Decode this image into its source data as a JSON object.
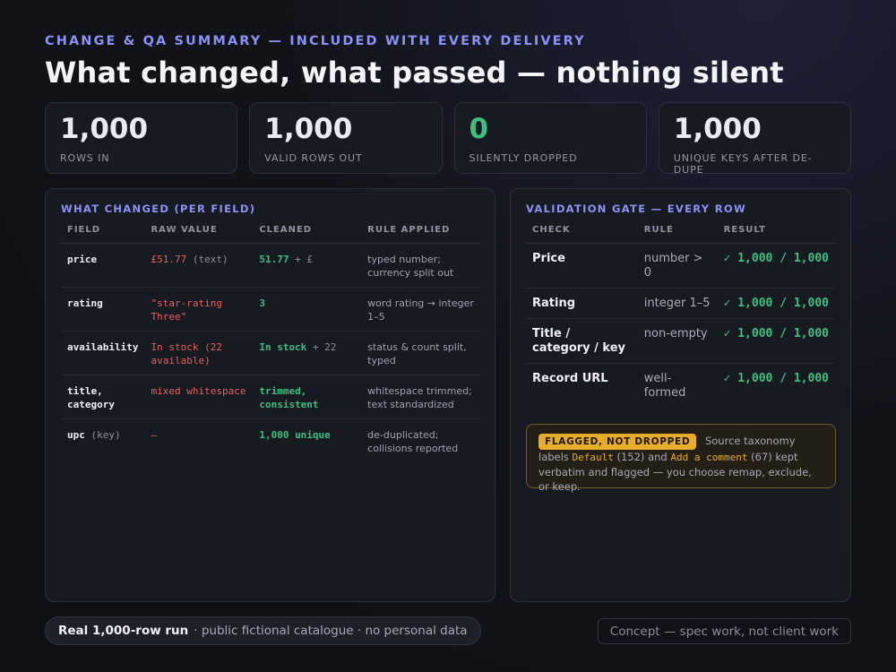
{
  "header": {
    "eyebrow": "CHANGE & QA SUMMARY — INCLUDED WITH EVERY DELIVERY",
    "title": "What changed, what passed — nothing silent"
  },
  "stats": [
    {
      "value": "1,000",
      "label": "ROWS IN"
    },
    {
      "value": "1,000",
      "label": "VALID ROWS OUT"
    },
    {
      "value": "0",
      "label": "SILENTLY DROPPED"
    },
    {
      "value": "1,000",
      "label": "UNIQUE KEYS AFTER DE-DUPE"
    }
  ],
  "changes": {
    "title": "WHAT CHANGED (PER FIELD)",
    "columns": [
      "FIELD",
      "RAW VALUE",
      "CLEANED",
      "RULE APPLIED"
    ],
    "rows": [
      {
        "field": "price",
        "field_note": "",
        "raw": "£51.77",
        "raw_note": "(text)",
        "clean": "51.77",
        "clean_note": "+ £",
        "rule": "typed number; currency split out"
      },
      {
        "field": "rating",
        "field_note": "",
        "raw": "\"star-rating Three\"",
        "raw_note": "",
        "clean": "3",
        "clean_note": "",
        "rule": "word rating → integer 1–5"
      },
      {
        "field": "availability",
        "field_note": "",
        "raw": "In stock (22 available)",
        "raw_note": "",
        "clean": "In stock",
        "clean_note": "+ 22",
        "rule": "status & count split, typed"
      },
      {
        "field": "title, category",
        "field_note": "",
        "raw": "mixed whitespace",
        "raw_note": "",
        "clean": "trimmed, consistent",
        "clean_note": "",
        "rule": "whitespace trimmed; text standardized"
      },
      {
        "field": "upc",
        "field_note": "(key)",
        "raw": "—",
        "raw_note": "",
        "clean": "1,000 unique",
        "clean_note": "",
        "rule": "de-duplicated; collisions reported"
      }
    ]
  },
  "validation": {
    "title": "VALIDATION GATE — EVERY ROW",
    "columns": [
      "CHECK",
      "RULE",
      "RESULT"
    ],
    "rows": [
      {
        "check": "Price",
        "rule": "number > 0",
        "result": "✓ 1,000 / 1,000"
      },
      {
        "check": "Rating",
        "rule": "integer 1–5",
        "result": "✓ 1,000 / 1,000"
      },
      {
        "check": "Title / category / key",
        "rule": "non-empty",
        "result": "✓ 1,000 / 1,000"
      },
      {
        "check": "Record URL",
        "rule": "well-formed",
        "result": "✓ 1,000 / 1,000"
      }
    ]
  },
  "flag": {
    "badge": "FLAGGED, NOT DROPPED",
    "lead": "Source taxonomy labels",
    "term1": "Default",
    "count1": "(152) and",
    "term2": "Add a comment",
    "rest": "(67) kept verbatim and flagged — you choose remap, exclude, or keep."
  },
  "footer": {
    "bold": "Real 1,000-row run",
    "detail": "· public fictional catalogue · no personal data",
    "note": "Concept — spec work, not client work"
  },
  "colors": {
    "accent": "#8a93f5",
    "success": "#3fbf7f",
    "raw": "#e5605b",
    "flag": "#e8ac2b"
  }
}
